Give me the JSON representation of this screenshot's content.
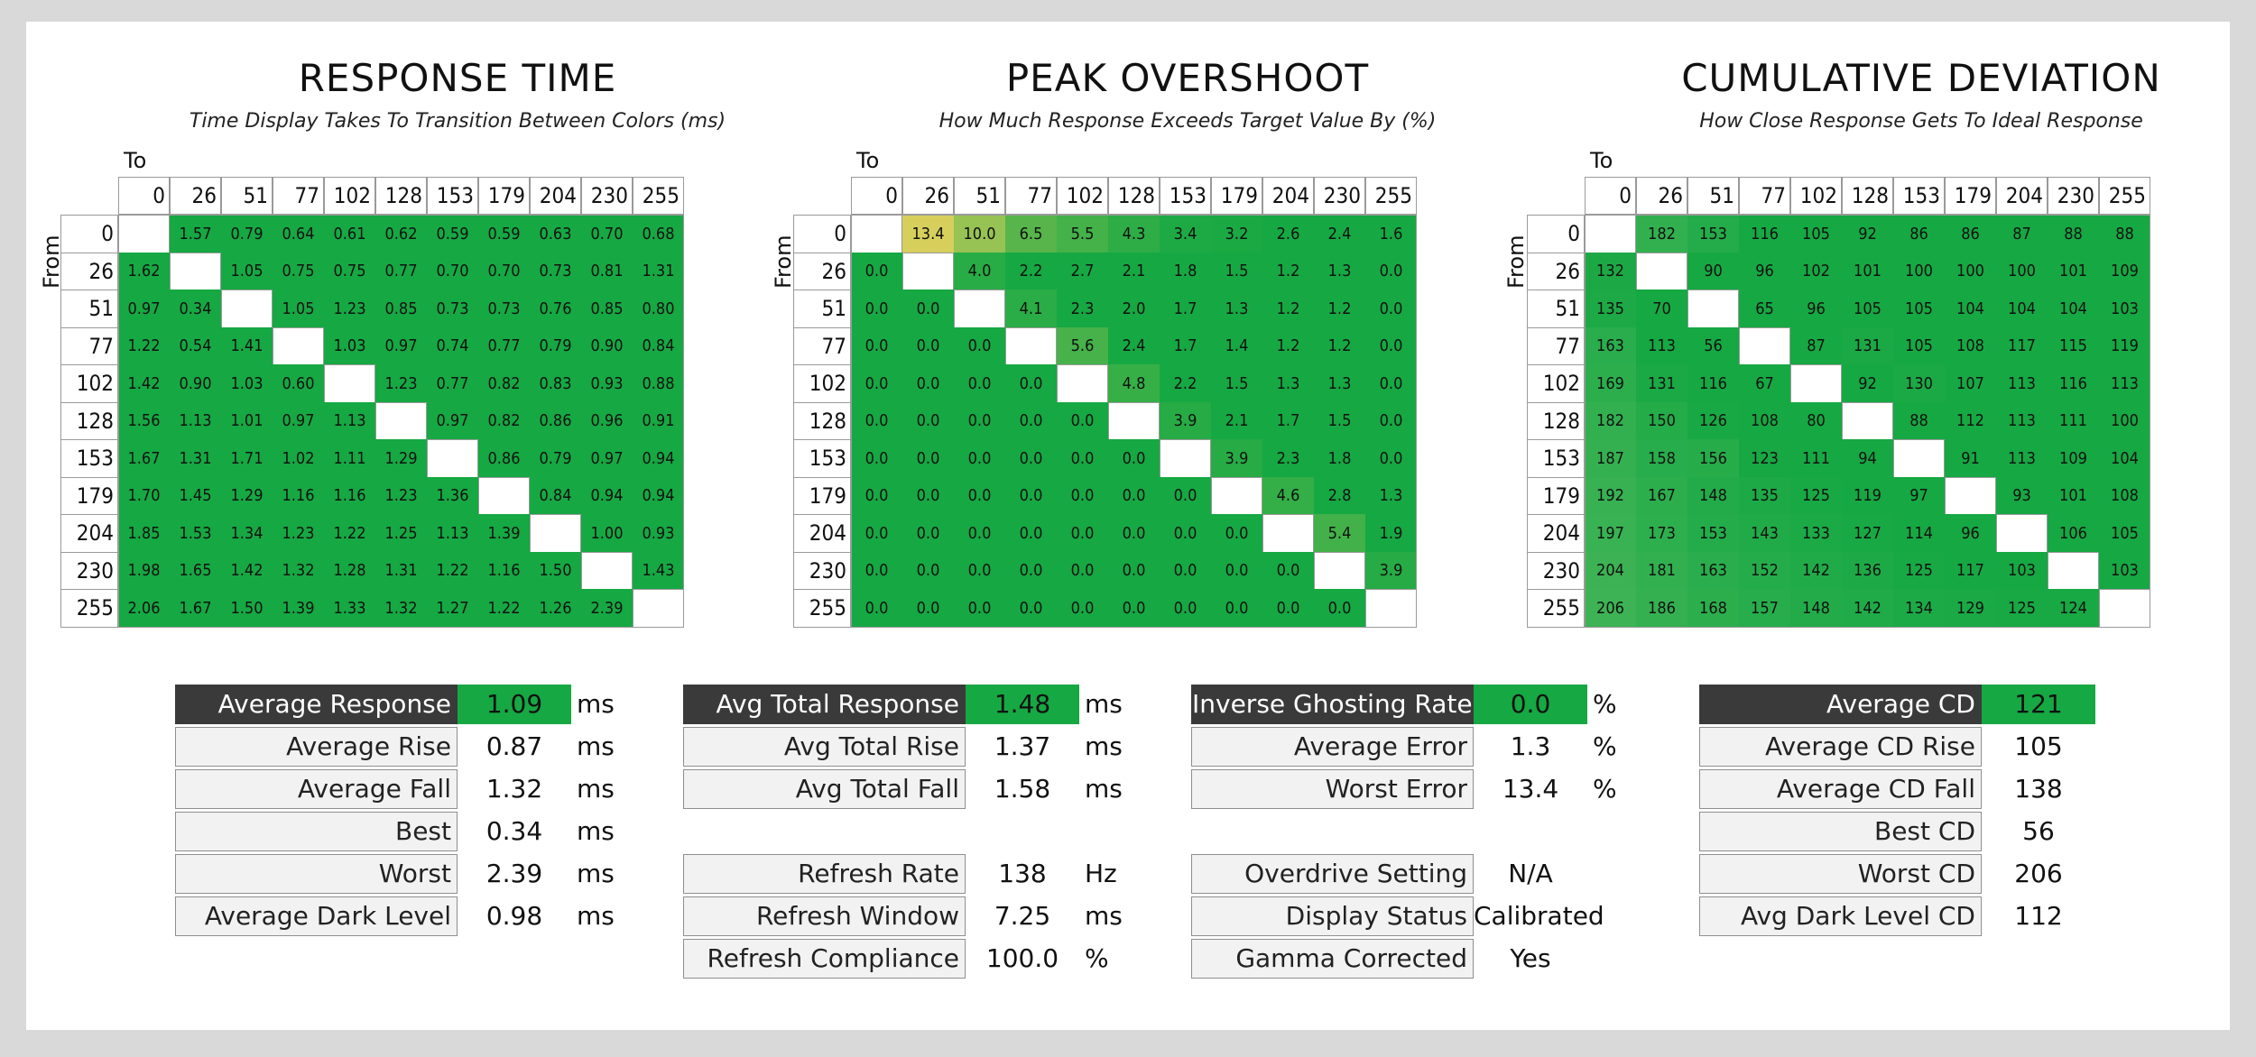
{
  "axis": {
    "to_label": "To",
    "from_label": "From"
  },
  "chart_data": [
    {
      "type": "heatmap",
      "title": "RESPONSE TIME",
      "subtitle": "Time Display Takes To Transition Between Colors (ms)",
      "xlabel": "To",
      "ylabel": "From",
      "x": [
        "0",
        "26",
        "51",
        "77",
        "102",
        "128",
        "153",
        "179",
        "204",
        "230",
        "255"
      ],
      "y": [
        "0",
        "26",
        "51",
        "77",
        "102",
        "128",
        "153",
        "179",
        "204",
        "230",
        "255"
      ],
      "values": [
        [
          null,
          "1.57",
          "0.79",
          "0.64",
          "0.61",
          "0.62",
          "0.59",
          "0.59",
          "0.63",
          "0.70",
          "0.68"
        ],
        [
          "1.62",
          null,
          "1.05",
          "0.75",
          "0.75",
          "0.77",
          "0.70",
          "0.70",
          "0.73",
          "0.81",
          "1.31"
        ],
        [
          "0.97",
          "0.34",
          null,
          "1.05",
          "1.23",
          "0.85",
          "0.73",
          "0.73",
          "0.76",
          "0.85",
          "0.80"
        ],
        [
          "1.22",
          "0.54",
          "1.41",
          null,
          "1.03",
          "0.97",
          "0.74",
          "0.77",
          "0.79",
          "0.90",
          "0.84"
        ],
        [
          "1.42",
          "0.90",
          "1.03",
          "0.60",
          null,
          "1.23",
          "0.77",
          "0.82",
          "0.83",
          "0.93",
          "0.88"
        ],
        [
          "1.56",
          "1.13",
          "1.01",
          "0.97",
          "1.13",
          null,
          "0.97",
          "0.82",
          "0.86",
          "0.96",
          "0.91"
        ],
        [
          "1.67",
          "1.31",
          "1.71",
          "1.02",
          "1.11",
          "1.29",
          null,
          "0.86",
          "0.79",
          "0.97",
          "0.94"
        ],
        [
          "1.70",
          "1.45",
          "1.29",
          "1.16",
          "1.16",
          "1.23",
          "1.36",
          null,
          "0.84",
          "0.94",
          "0.94"
        ],
        [
          "1.85",
          "1.53",
          "1.34",
          "1.23",
          "1.22",
          "1.25",
          "1.13",
          "1.39",
          null,
          "1.00",
          "0.93"
        ],
        [
          "1.98",
          "1.65",
          "1.42",
          "1.32",
          "1.28",
          "1.31",
          "1.22",
          "1.16",
          "1.50",
          null,
          "1.43"
        ],
        [
          "2.06",
          "1.67",
          "1.50",
          "1.39",
          "1.33",
          "1.32",
          "1.27",
          "1.22",
          "1.26",
          "2.39",
          null
        ]
      ]
    },
    {
      "type": "heatmap",
      "title": "PEAK OVERSHOOT",
      "subtitle": "How Much Response Exceeds Target Value By (%)",
      "xlabel": "To",
      "ylabel": "From",
      "x": [
        "0",
        "26",
        "51",
        "77",
        "102",
        "128",
        "153",
        "179",
        "204",
        "230",
        "255"
      ],
      "y": [
        "0",
        "26",
        "51",
        "77",
        "102",
        "128",
        "153",
        "179",
        "204",
        "230",
        "255"
      ],
      "values": [
        [
          null,
          "13.4",
          "10.0",
          "6.5",
          "5.5",
          "4.3",
          "3.4",
          "3.2",
          "2.6",
          "2.4",
          "1.6"
        ],
        [
          "0.0",
          null,
          "4.0",
          "2.2",
          "2.7",
          "2.1",
          "1.8",
          "1.5",
          "1.2",
          "1.3",
          "0.0"
        ],
        [
          "0.0",
          "0.0",
          null,
          "4.1",
          "2.3",
          "2.0",
          "1.7",
          "1.3",
          "1.2",
          "1.2",
          "0.0"
        ],
        [
          "0.0",
          "0.0",
          "0.0",
          null,
          "5.6",
          "2.4",
          "1.7",
          "1.4",
          "1.2",
          "1.2",
          "0.0"
        ],
        [
          "0.0",
          "0.0",
          "0.0",
          "0.0",
          null,
          "4.8",
          "2.2",
          "1.5",
          "1.3",
          "1.3",
          "0.0"
        ],
        [
          "0.0",
          "0.0",
          "0.0",
          "0.0",
          "0.0",
          null,
          "3.9",
          "2.1",
          "1.7",
          "1.5",
          "0.0"
        ],
        [
          "0.0",
          "0.0",
          "0.0",
          "0.0",
          "0.0",
          "0.0",
          null,
          "3.9",
          "2.3",
          "1.8",
          "0.0"
        ],
        [
          "0.0",
          "0.0",
          "0.0",
          "0.0",
          "0.0",
          "0.0",
          "0.0",
          null,
          "4.6",
          "2.8",
          "1.3"
        ],
        [
          "0.0",
          "0.0",
          "0.0",
          "0.0",
          "0.0",
          "0.0",
          "0.0",
          "0.0",
          null,
          "5.4",
          "1.9"
        ],
        [
          "0.0",
          "0.0",
          "0.0",
          "0.0",
          "0.0",
          "0.0",
          "0.0",
          "0.0",
          "0.0",
          null,
          "3.9"
        ],
        [
          "0.0",
          "0.0",
          "0.0",
          "0.0",
          "0.0",
          "0.0",
          "0.0",
          "0.0",
          "0.0",
          "0.0",
          null
        ]
      ]
    },
    {
      "type": "heatmap",
      "title": "CUMULATIVE DEVIATION",
      "subtitle": "How Close Response Gets To Ideal Response",
      "xlabel": "To",
      "ylabel": "From",
      "x": [
        "0",
        "26",
        "51",
        "77",
        "102",
        "128",
        "153",
        "179",
        "204",
        "230",
        "255"
      ],
      "y": [
        "0",
        "26",
        "51",
        "77",
        "102",
        "128",
        "153",
        "179",
        "204",
        "230",
        "255"
      ],
      "values": [
        [
          null,
          "182",
          "153",
          "116",
          "105",
          "92",
          "86",
          "86",
          "87",
          "88",
          "88"
        ],
        [
          "132",
          null,
          "90",
          "96",
          "102",
          "101",
          "100",
          "100",
          "100",
          "101",
          "109"
        ],
        [
          "135",
          "70",
          null,
          "65",
          "96",
          "105",
          "105",
          "104",
          "104",
          "104",
          "103"
        ],
        [
          "163",
          "113",
          "56",
          null,
          "87",
          "131",
          "105",
          "108",
          "117",
          "115",
          "119"
        ],
        [
          "169",
          "131",
          "116",
          "67",
          null,
          "92",
          "130",
          "107",
          "113",
          "116",
          "113"
        ],
        [
          "182",
          "150",
          "126",
          "108",
          "80",
          null,
          "88",
          "112",
          "113",
          "111",
          "100"
        ],
        [
          "187",
          "158",
          "156",
          "123",
          "111",
          "94",
          null,
          "91",
          "113",
          "109",
          "104"
        ],
        [
          "192",
          "167",
          "148",
          "135",
          "125",
          "119",
          "97",
          null,
          "93",
          "101",
          "108"
        ],
        [
          "197",
          "173",
          "153",
          "143",
          "133",
          "127",
          "114",
          "96",
          null,
          "106",
          "105"
        ],
        [
          "204",
          "181",
          "163",
          "152",
          "142",
          "136",
          "125",
          "117",
          "103",
          null,
          "103"
        ],
        [
          "206",
          "186",
          "168",
          "157",
          "148",
          "142",
          "134",
          "129",
          "125",
          "124",
          null
        ]
      ]
    }
  ],
  "colors": {
    "green": "#16a843",
    "yellow": "#d6cf5c",
    "header_dark": "#3a3a3a",
    "label_bg": "#f2f2f2"
  },
  "summaries": [
    {
      "rows": [
        {
          "label": "Average Response",
          "value": "1.09",
          "unit": "ms",
          "highlight": true
        },
        {
          "label": "Average Rise",
          "value": "0.87",
          "unit": "ms"
        },
        {
          "label": "Average Fall",
          "value": "1.32",
          "unit": "ms"
        },
        {
          "label": "Best",
          "value": "0.34",
          "unit": "ms"
        },
        {
          "label": "Worst",
          "value": "2.39",
          "unit": "ms"
        },
        {
          "label": "Average Dark Level",
          "value": "0.98",
          "unit": "ms"
        }
      ]
    },
    {
      "rows": [
        {
          "label": "Avg Total Response",
          "value": "1.48",
          "unit": "ms",
          "highlight": true
        },
        {
          "label": "Avg Total Rise",
          "value": "1.37",
          "unit": "ms"
        },
        {
          "label": "Avg Total Fall",
          "value": "1.58",
          "unit": "ms"
        },
        null,
        {
          "label": "Refresh Rate",
          "value": "138",
          "unit": "Hz"
        },
        {
          "label": "Refresh Window",
          "value": "7.25",
          "unit": "ms"
        },
        {
          "label": "Refresh Compliance",
          "value": "100.0",
          "unit": "%"
        }
      ]
    },
    {
      "rows": [
        {
          "label": "Inverse Ghosting Rate",
          "value": "0.0",
          "unit": "%",
          "highlight": true
        },
        {
          "label": "Average Error",
          "value": "1.3",
          "unit": "%"
        },
        {
          "label": "Worst Error",
          "value": "13.4",
          "unit": "%"
        },
        null,
        {
          "label": "Overdrive Setting",
          "value": "N/A",
          "unit": ""
        },
        {
          "label": "Display Status",
          "value": "Calibrated",
          "unit": ""
        },
        {
          "label": "Gamma Corrected",
          "value": "Yes",
          "unit": ""
        }
      ]
    },
    {
      "rows": [
        {
          "label": "Average CD",
          "value": "121",
          "unit": "",
          "highlight": true
        },
        {
          "label": "Average CD Rise",
          "value": "105",
          "unit": ""
        },
        {
          "label": "Average CD Fall",
          "value": "138",
          "unit": ""
        },
        {
          "label": "Best CD",
          "value": "56",
          "unit": ""
        },
        {
          "label": "Worst CD",
          "value": "206",
          "unit": ""
        },
        {
          "label": "Avg Dark Level CD",
          "value": "112",
          "unit": ""
        }
      ]
    }
  ]
}
